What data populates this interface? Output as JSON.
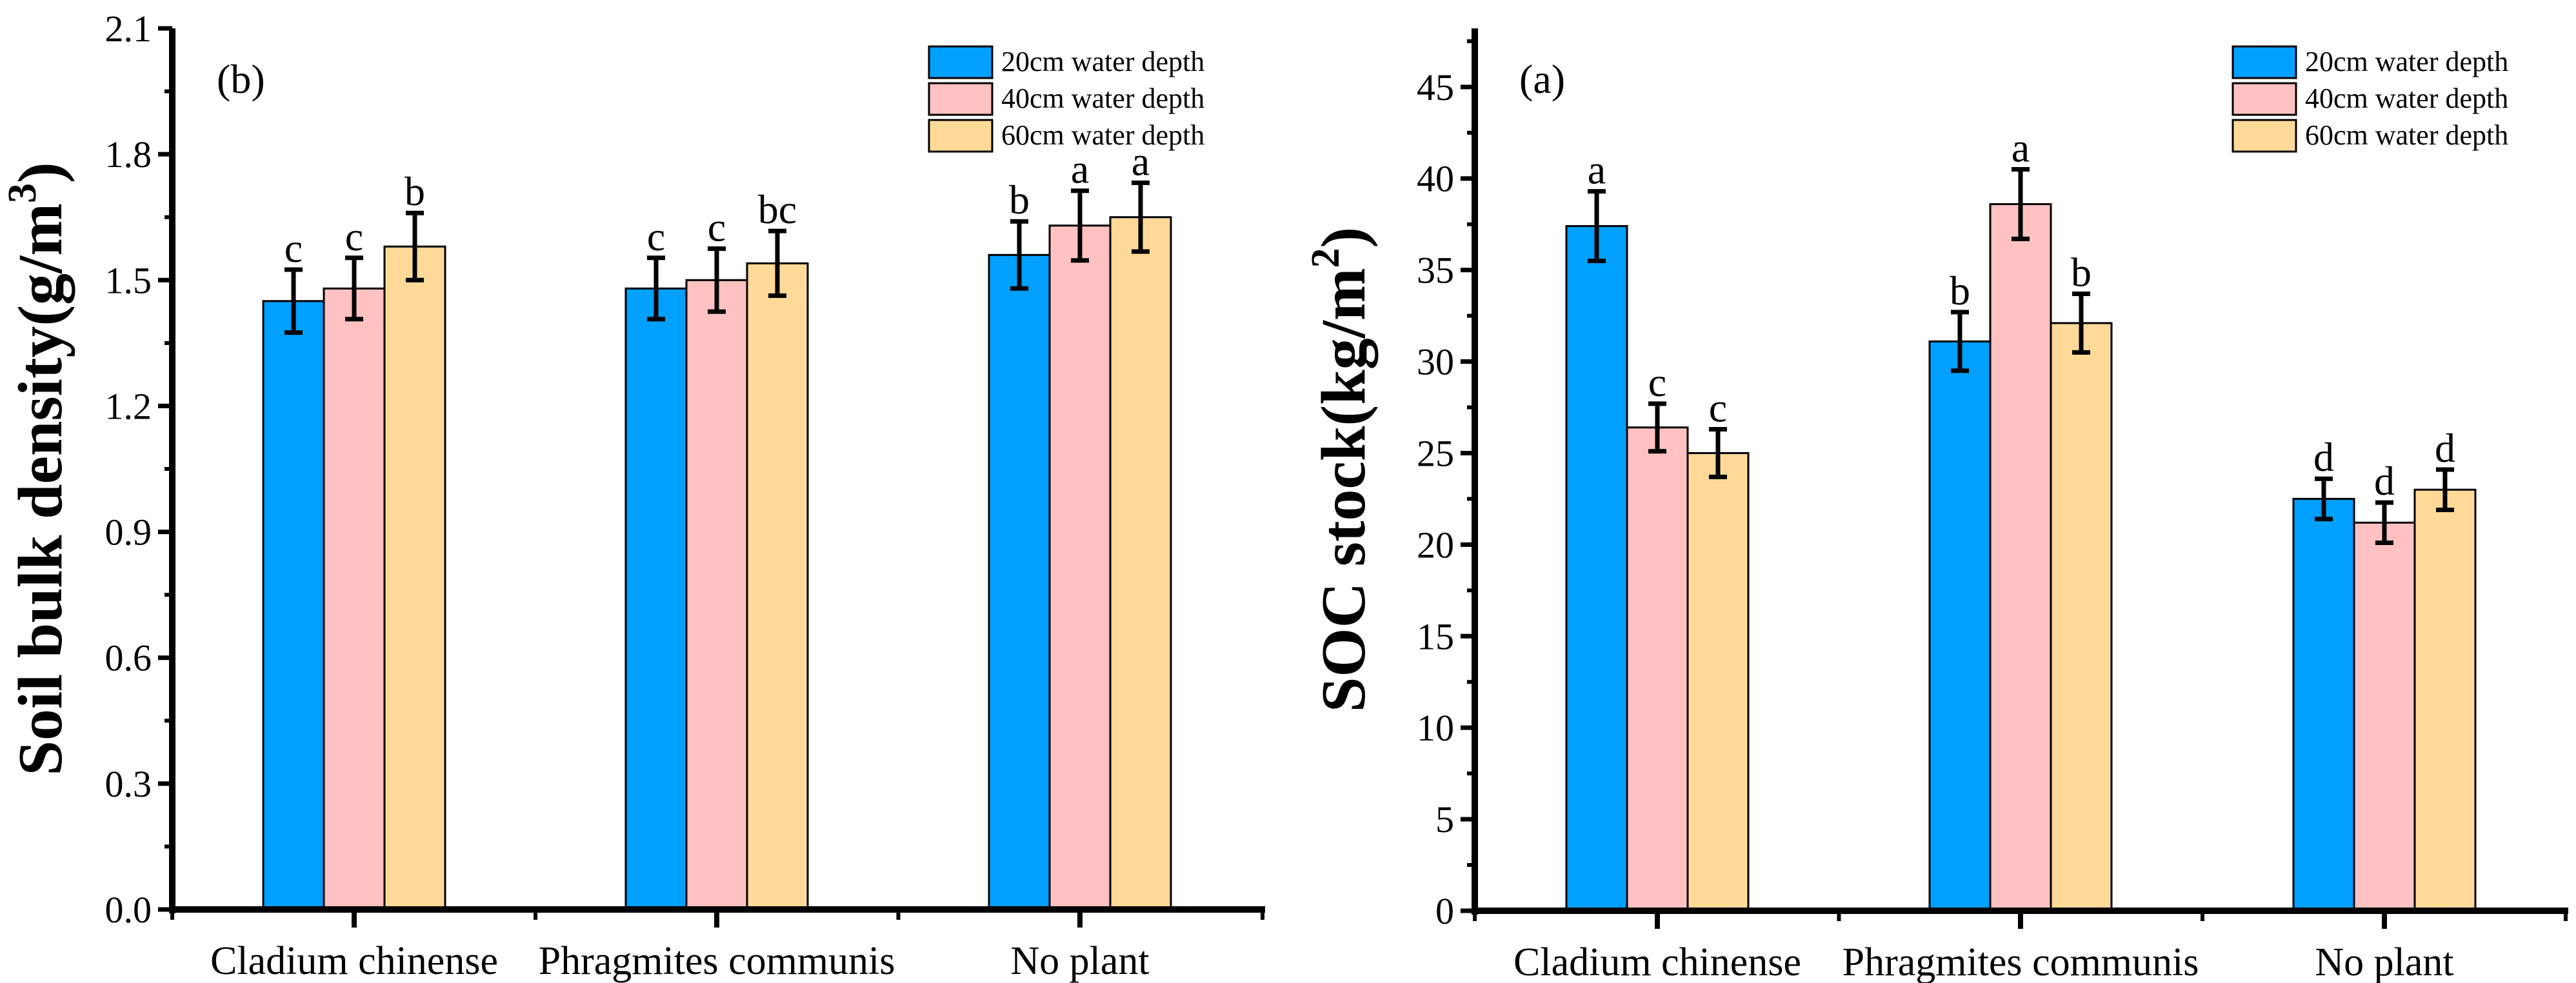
{
  "colors": {
    "20cm": "#00A0FF",
    "40cm": "#FFC1C1",
    "60cm": "#FFD998",
    "axis": "#000000"
  },
  "chart_data": [
    {
      "type": "bar",
      "panel_label": "(b)",
      "ylabel": "Soil bulk density(g/m",
      "ylabel_sup": "3",
      "ylabel_end": ")",
      "xlabel": "",
      "ylim": [
        0,
        2.1
      ],
      "yticks": [
        "0.0",
        "0.3",
        "0.6",
        "0.9",
        "1.2",
        "1.5",
        "1.8",
        "2.1"
      ],
      "ytick_values": [
        0,
        0.3,
        0.6,
        0.9,
        1.2,
        1.5,
        1.8,
        2.1
      ],
      "categories": [
        "Cladium chinense",
        "Phragmites communis",
        "No plant"
      ],
      "legend_position": "top-right",
      "series": [
        {
          "name": "20cm water depth",
          "values": [
            1.45,
            1.48,
            1.56
          ],
          "errors": [
            0.075,
            0.073,
            0.08
          ],
          "letters": [
            "c",
            "c",
            "b"
          ]
        },
        {
          "name": "40cm water depth",
          "values": [
            1.48,
            1.5,
            1.63
          ],
          "errors": [
            0.073,
            0.075,
            0.083
          ],
          "letters": [
            "c",
            "c",
            "a"
          ]
        },
        {
          "name": "60cm water depth",
          "values": [
            1.58,
            1.54,
            1.65
          ],
          "errors": [
            0.08,
            0.077,
            0.082
          ],
          "letters": [
            "b",
            "bc",
            "a"
          ]
        }
      ]
    },
    {
      "type": "bar",
      "panel_label": "(a)",
      "ylabel": "SOC stock(kg/m",
      "ylabel_sup": "2",
      "ylabel_end": ")",
      "xlabel": "",
      "ylim": [
        0,
        48.2
      ],
      "yticks": [
        "0",
        "5",
        "10",
        "15",
        "20",
        "25",
        "30",
        "35",
        "40",
        "45"
      ],
      "ytick_values": [
        0,
        5,
        10,
        15,
        20,
        25,
        30,
        35,
        40,
        45
      ],
      "categories": [
        "Cladium chinense",
        "Phragmites communis",
        "No plant"
      ],
      "legend_position": "top-right",
      "series": [
        {
          "name": "20cm water depth",
          "values": [
            37.4,
            31.1,
            22.5
          ],
          "errors": [
            1.9,
            1.6,
            1.1
          ],
          "letters": [
            "a",
            "b",
            "d"
          ]
        },
        {
          "name": "40cm water depth",
          "values": [
            26.4,
            38.6,
            21.2
          ],
          "errors": [
            1.3,
            1.9,
            1.1
          ],
          "letters": [
            "c",
            "a",
            "d"
          ]
        },
        {
          "name": "60cm water depth",
          "values": [
            25.0,
            32.1,
            23.0
          ],
          "errors": [
            1.3,
            1.6,
            1.1
          ],
          "letters": [
            "c",
            "b",
            "d"
          ]
        }
      ]
    }
  ]
}
